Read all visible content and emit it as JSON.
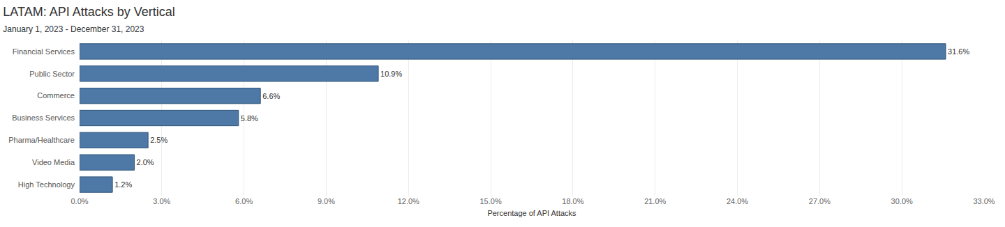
{
  "chart_data": {
    "type": "bar",
    "orientation": "horizontal",
    "title": "LATAM: API Attacks by Vertical",
    "subtitle": "January 1, 2023 - December 31, 2023",
    "x_label": "Percentage of API Attacks",
    "categories": [
      "Financial Services",
      "Public Sector",
      "Commerce",
      "Business Services",
      "Pharma/Healthcare",
      "Video Media",
      "High Technology"
    ],
    "values": [
      31.6,
      10.9,
      6.6,
      5.8,
      2.5,
      2.0,
      1.2
    ],
    "value_labels": [
      "31.6%",
      "10.9%",
      "6.6%",
      "5.8%",
      "2.5%",
      "2.0%",
      "1.2%"
    ],
    "data_labels": true,
    "color": "#4e79a7",
    "xlim": [
      0,
      33
    ],
    "xticks": [
      {
        "value": 0,
        "label": "0.0%"
      },
      {
        "value": 3,
        "label": "3.0%"
      },
      {
        "value": 6,
        "label": "6.0%"
      },
      {
        "value": 9,
        "label": "9.0%"
      },
      {
        "value": 12,
        "label": "12.0%"
      },
      {
        "value": 15,
        "label": "15.0%"
      },
      {
        "value": 18,
        "label": "18.0%"
      },
      {
        "value": 21,
        "label": "21.0%"
      },
      {
        "value": 24,
        "label": "24.0%"
      },
      {
        "value": 27,
        "label": "27.0%"
      },
      {
        "value": 30,
        "label": "30.0%"
      },
      {
        "value": 33,
        "label": "33.0%"
      }
    ],
    "grid": true
  }
}
